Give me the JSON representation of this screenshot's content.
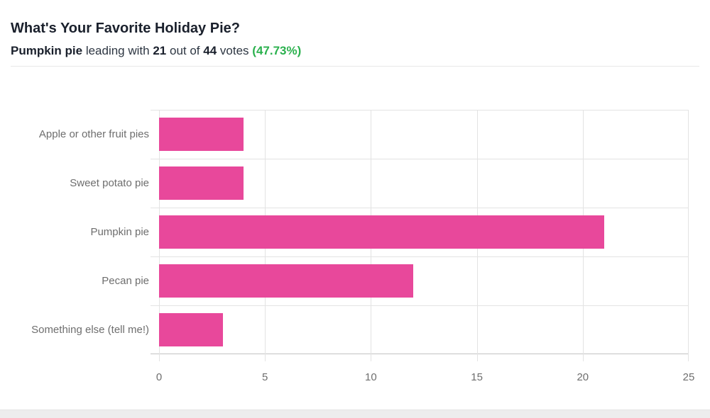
{
  "header": {
    "title": "What's Your Favorite Holiday Pie?",
    "subtitle": {
      "leader": "Pumpkin pie",
      "connector1": "leading with",
      "leading_votes": "21",
      "connector2": "out of",
      "total_votes": "44",
      "connector3": "votes",
      "percent": "(47.73%)"
    }
  },
  "chart_data": {
    "type": "bar",
    "orientation": "horizontal",
    "title": "",
    "xlabel": "",
    "ylabel": "",
    "categories": [
      "Apple or other fruit pies",
      "Sweet potato pie",
      "Pumpkin pie",
      "Pecan pie",
      "Something else (tell me!)"
    ],
    "values": [
      4,
      4,
      21,
      12,
      3
    ],
    "x_ticks": [
      0,
      5,
      10,
      15,
      20,
      25
    ],
    "xlim": [
      0,
      25
    ],
    "grid": true,
    "legend": false,
    "bar_color": "#e8489b"
  },
  "colors": {
    "accent_pink": "#e8489b",
    "success_green": "#2bb14e",
    "title_dark": "#1a202c",
    "subtitle_text": "#2d3642",
    "label_gray": "#6e6e6e",
    "gridline": "#e3e3e3",
    "axis_line": "#c3c3c3",
    "divider": "#e8e8e8",
    "bottom_band": "#ededed"
  }
}
